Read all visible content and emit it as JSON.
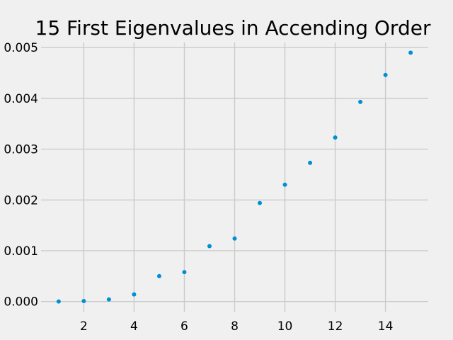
{
  "chart_data": {
    "type": "scatter",
    "title": "15 First Eigenvalues in Accending Order",
    "xlabel": "",
    "ylabel": "",
    "x": [
      1,
      2,
      3,
      4,
      5,
      6,
      7,
      8,
      9,
      10,
      11,
      12,
      13,
      14,
      15
    ],
    "y": [
      0.0,
      1e-05,
      4e-05,
      0.00014,
      0.0005,
      0.00058,
      0.00109,
      0.00124,
      0.00194,
      0.0023,
      0.00273,
      0.00323,
      0.00393,
      0.00446,
      0.0049
    ],
    "xlim": [
      0.3,
      15.7
    ],
    "ylim": [
      -0.0002,
      0.0051
    ],
    "x_ticks": [
      2,
      4,
      6,
      8,
      10,
      12,
      14
    ],
    "x_tick_labels": [
      "2",
      "4",
      "6",
      "8",
      "10",
      "12",
      "14"
    ],
    "y_ticks": [
      0.0,
      0.001,
      0.002,
      0.003,
      0.004,
      0.005
    ],
    "y_tick_labels": [
      "0.000",
      "0.001",
      "0.002",
      "0.003",
      "0.004",
      "0.005"
    ],
    "grid": true,
    "colors": {
      "background": "#f0f0f0",
      "grid": "#cbcbcb",
      "marker": "#008fd5"
    }
  }
}
